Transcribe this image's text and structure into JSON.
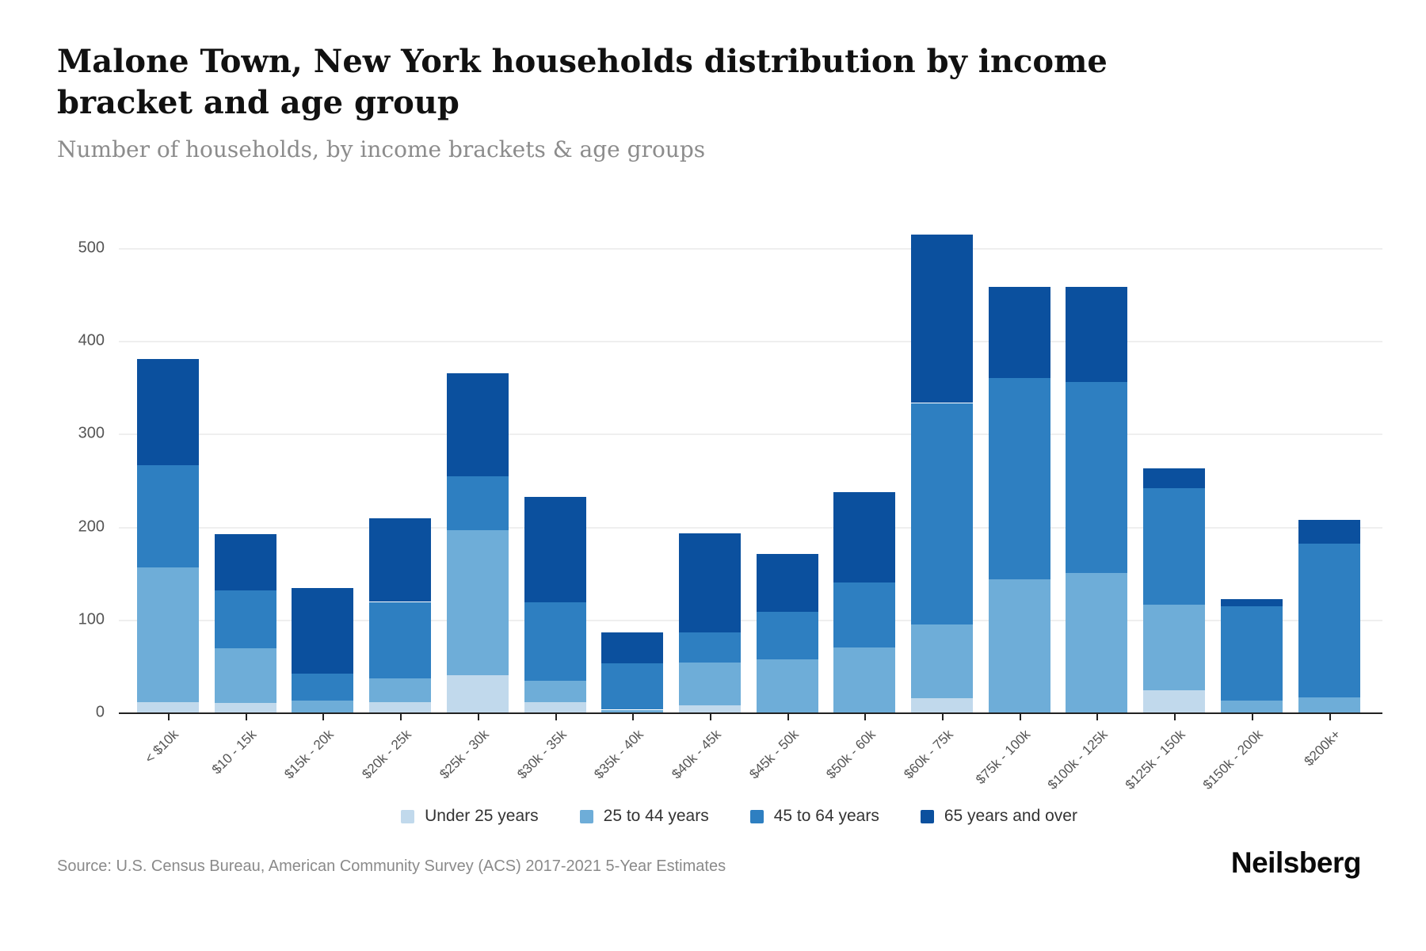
{
  "header": {
    "title": "Malone Town, New York households distribution by income bracket and age group",
    "subtitle": "Number of households, by income brackets & age groups"
  },
  "chart_data": {
    "type": "bar",
    "stacked": true,
    "title": "Malone Town, New York households distribution by income bracket and age group",
    "subtitle": "Number of households, by income brackets & age groups",
    "xlabel": "",
    "ylabel": "Number of households",
    "ylim": [
      0,
      500
    ],
    "yticks": [
      0,
      100,
      200,
      300,
      400,
      500
    ],
    "grid": true,
    "legend_position": "bottom",
    "categories": [
      "< $10k",
      "$10 - 15k",
      "$15k - 20k",
      "$20k - 25k",
      "$25k - 30k",
      "$30k - 35k",
      "$35k - 40k",
      "$40k - 45k",
      "$45k - 50k",
      "$50k - 60k",
      "$60k - 75k",
      "$75k - 100k",
      "$100k - 125k",
      "$125k - 150k",
      "$150k - 200k",
      "$200k+"
    ],
    "series": [
      {
        "name": "Under 25 years",
        "color": "#c1d9ec",
        "values": [
          11,
          10,
          0,
          11,
          40,
          11,
          0,
          8,
          0,
          0,
          15,
          0,
          0,
          24,
          0,
          0
        ]
      },
      {
        "name": "25 to 44 years",
        "color": "#6eadd8",
        "values": [
          145,
          59,
          13,
          26,
          156,
          23,
          3,
          46,
          57,
          70,
          80,
          143,
          150,
          92,
          13,
          16
        ]
      },
      {
        "name": "45 to 64 years",
        "color": "#2e7fc1",
        "values": [
          110,
          62,
          29,
          82,
          58,
          85,
          50,
          32,
          51,
          70,
          238,
          217,
          206,
          125,
          101,
          166
        ]
      },
      {
        "name": "65 years and over",
        "color": "#0b509e",
        "values": [
          114,
          61,
          92,
          90,
          111,
          113,
          33,
          107,
          63,
          97,
          181,
          98,
          102,
          22,
          8,
          25
        ]
      }
    ]
  },
  "footer": {
    "source": "Source: U.S. Census Bureau, American Community Survey (ACS) 2017-2021 5-Year Estimates",
    "brand": "Neilsberg"
  },
  "style_colors": {
    "accent_dark": "#0b509e",
    "gridline": "#efefef",
    "axis": "#222222",
    "tick_text": "#555555",
    "title_text": "#111111",
    "subtitle_text": "#8c8c8c"
  }
}
